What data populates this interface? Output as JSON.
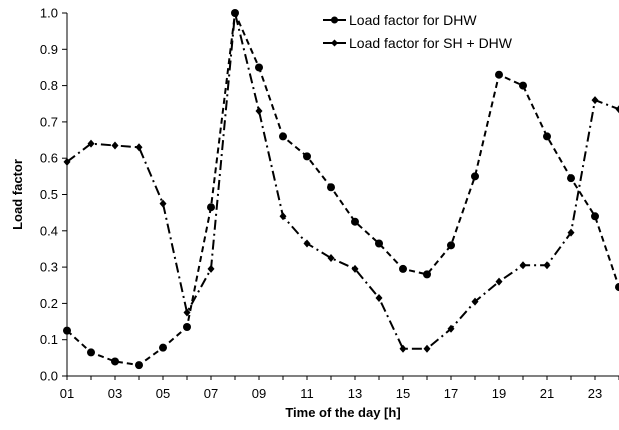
{
  "chart_data": {
    "type": "line",
    "xlabel": "Time of the day [h]",
    "ylabel": "Load factor",
    "xlim": [
      1,
      24
    ],
    "ylim": [
      0,
      1.0
    ],
    "x_tick_labels": [
      "01",
      "03",
      "05",
      "07",
      "09",
      "11",
      "13",
      "15",
      "17",
      "19",
      "21",
      "23"
    ],
    "x_tick_values": [
      1,
      3,
      5,
      7,
      9,
      11,
      13,
      15,
      17,
      19,
      21,
      23
    ],
    "y_tick_labels": [
      "0.0",
      "0.1",
      "0.2",
      "0.3",
      "0.4",
      "0.5",
      "0.6",
      "0.7",
      "0.8",
      "0.9",
      "1.0"
    ],
    "y_tick_values": [
      0,
      0.1,
      0.2,
      0.3,
      0.4,
      0.5,
      0.6,
      0.7,
      0.8,
      0.9,
      1.0
    ],
    "grid": false,
    "legend_position": "top-right",
    "x": [
      1,
      2,
      3,
      4,
      5,
      6,
      7,
      8,
      9,
      10,
      11,
      12,
      13,
      14,
      15,
      16,
      17,
      18,
      19,
      20,
      21,
      22,
      23,
      24
    ],
    "series": [
      {
        "name": "Load factor for DHW",
        "marker": "circle",
        "line_style": "dashed",
        "color": "#000000",
        "values": [
          0.125,
          0.065,
          0.04,
          0.03,
          0.078,
          0.135,
          0.465,
          1.0,
          0.85,
          0.66,
          0.605,
          0.52,
          0.425,
          0.365,
          0.295,
          0.28,
          0.36,
          0.55,
          0.83,
          0.8,
          0.66,
          0.545,
          0.44,
          0.245
        ]
      },
      {
        "name": "Load factor for SH + DHW",
        "marker": "diamond",
        "line_style": "dash-dot",
        "color": "#000000",
        "values": [
          0.59,
          0.64,
          0.635,
          0.63,
          0.475,
          0.175,
          0.295,
          1.0,
          0.73,
          0.44,
          0.365,
          0.325,
          0.295,
          0.215,
          0.075,
          0.075,
          0.13,
          0.205,
          0.26,
          0.305,
          0.305,
          0.395,
          0.76,
          0.735
        ]
      }
    ]
  }
}
